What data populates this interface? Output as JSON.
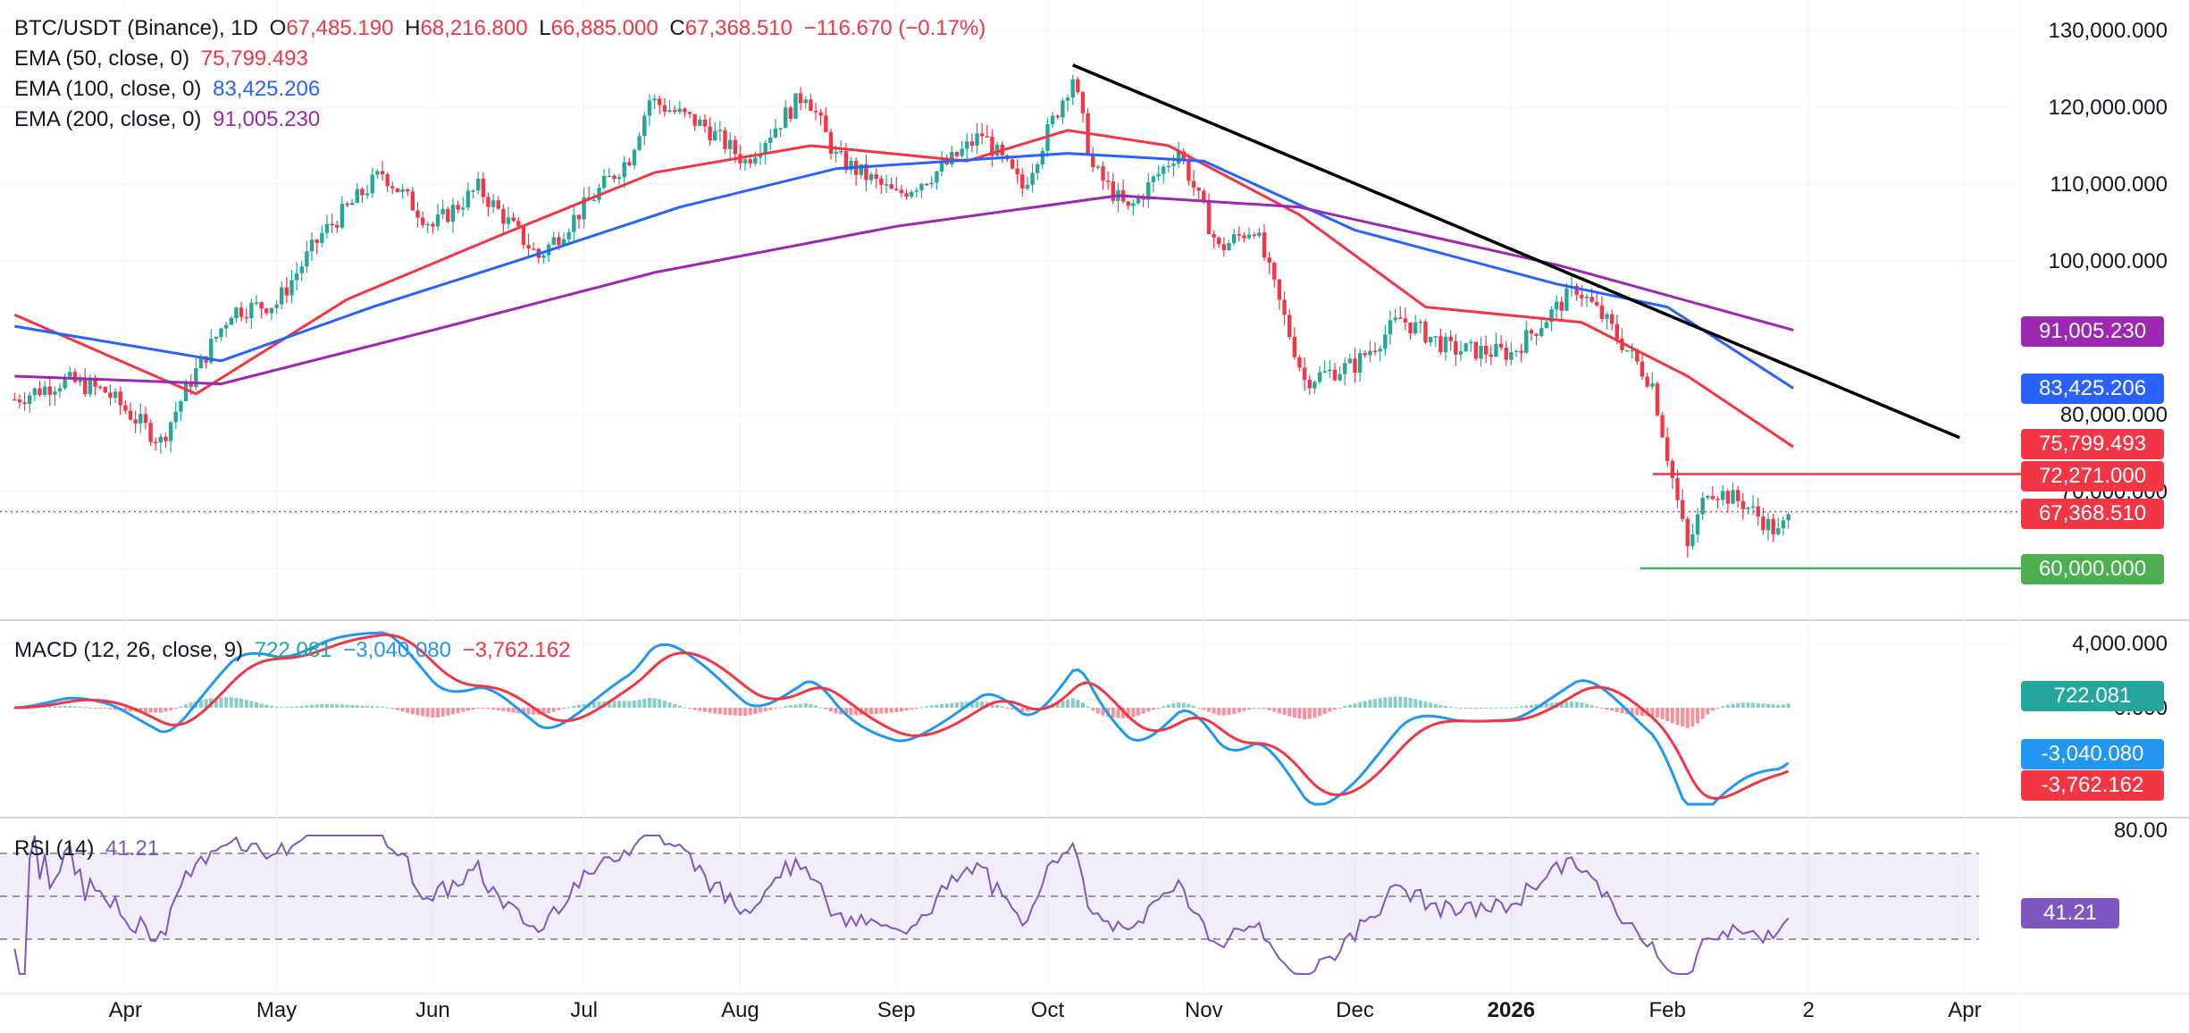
{
  "header": {
    "symbol": "BTC/USDT (Binance), 1D",
    "o_label": "O",
    "o_value": "67,485.190",
    "h_label": "H",
    "h_value": "68,216.800",
    "l_label": "L",
    "l_value": "66,885.000",
    "c_label": "C",
    "c_value": "67,368.510",
    "change": "−116.670 (−0.17%)"
  },
  "indicators": {
    "ema50": {
      "label": "EMA (50, close, 0)",
      "value": "75,799.493",
      "color": "#f23645"
    },
    "ema100": {
      "label": "EMA (100, close, 0)",
      "value": "83,425.206",
      "color": "#2962ff"
    },
    "ema200": {
      "label": "EMA (200, close, 0)",
      "value": "91,005.230",
      "color": "#9c27b0"
    },
    "macd": {
      "label": "MACD (12, 26, close, 9)",
      "hist": "722.081",
      "macd": "−3,040.080",
      "signal": "−3,762.162"
    },
    "rsi": {
      "label": "RSI (14)",
      "value": "41.21"
    }
  },
  "price_tags": {
    "ema200": "91,005.230",
    "ema100": "83,425.206",
    "ema50": "75,799.493",
    "resistance": "72,271.000",
    "last": "67,368.510",
    "support": "60,000.000",
    "macd_hist": "722.081",
    "macd_line": "-3,040.080",
    "macd_signal": "-3,762.162",
    "rsi": "41.21"
  },
  "colors": {
    "up": "#26a69a",
    "down": "#f23645",
    "ema50": "#f23645",
    "ema100": "#2962ff",
    "ema200": "#9c27b0",
    "macd": "#2196f3",
    "signal": "#f23645",
    "rsi": "#7e57c2",
    "trendline": "#000000",
    "support": "#4caf50",
    "resistance": "#f23645"
  },
  "chart_data": {
    "type": "candlestick",
    "title": "BTC/USDT (Binance), 1D",
    "price_axis_ticks": [
      "130,000.000",
      "120,000.000",
      "110,000.000",
      "100,000.000",
      "80,000.000",
      "70,000.000"
    ],
    "ylim": [
      55000,
      134000
    ],
    "x_ticks": [
      "Apr",
      "May",
      "Jun",
      "Jul",
      "Aug",
      "Sep",
      "Oct",
      "Nov",
      "Dec",
      "2026",
      "Feb",
      "2",
      "Apr"
    ],
    "price_path": [
      [
        "2025-03-10",
        82000
      ],
      [
        "2025-03-20",
        84500
      ],
      [
        "2025-03-28",
        83000
      ],
      [
        "2025-04-08",
        76500
      ],
      [
        "2025-04-14",
        84500
      ],
      [
        "2025-04-22",
        93500
      ],
      [
        "2025-05-01",
        94500
      ],
      [
        "2025-05-10",
        103500
      ],
      [
        "2025-05-22",
        111500
      ],
      [
        "2025-06-01",
        104500
      ],
      [
        "2025-06-10",
        109500
      ],
      [
        "2025-06-22",
        100500
      ],
      [
        "2025-07-01",
        107000
      ],
      [
        "2025-07-10",
        113500
      ],
      [
        "2025-07-14",
        121000
      ],
      [
        "2025-07-25",
        117500
      ],
      [
        "2025-08-02",
        113000
      ],
      [
        "2025-08-14",
        122000
      ],
      [
        "2025-08-20",
        113500
      ],
      [
        "2025-09-01",
        108500
      ],
      [
        "2025-09-10",
        112000
      ],
      [
        "2025-09-18",
        116500
      ],
      [
        "2025-09-26",
        109500
      ],
      [
        "2025-10-06",
        124000
      ],
      [
        "2025-10-10",
        112000
      ],
      [
        "2025-10-17",
        106500
      ],
      [
        "2025-10-27",
        114500
      ],
      [
        "2025-11-04",
        101500
      ],
      [
        "2025-11-11",
        104500
      ],
      [
        "2025-11-21",
        84500
      ],
      [
        "2025-12-01",
        86500
      ],
      [
        "2025-12-10",
        92500
      ],
      [
        "2025-12-20",
        88500
      ],
      [
        "2026-01-01",
        88000
      ],
      [
        "2026-01-14",
        96500
      ],
      [
        "2026-01-20",
        92000
      ],
      [
        "2026-01-29",
        84000
      ],
      [
        "2026-02-05",
        62500
      ],
      [
        "2026-02-09",
        70500
      ],
      [
        "2026-02-16",
        68500
      ],
      [
        "2026-02-23",
        64500
      ],
      [
        "2026-02-26",
        67368.51
      ]
    ],
    "series": [
      {
        "name": "EMA (50, close, 0)",
        "last": 75799.493,
        "points": [
          [
            "2025-03-10",
            93000
          ],
          [
            "2025-04-15",
            82700
          ],
          [
            "2025-05-15",
            95000
          ],
          [
            "2025-06-15",
            103500
          ],
          [
            "2025-07-15",
            111500
          ],
          [
            "2025-08-15",
            115000
          ],
          [
            "2025-09-15",
            113000
          ],
          [
            "2025-10-05",
            117000
          ],
          [
            "2025-10-25",
            115000
          ],
          [
            "2025-11-20",
            106000
          ],
          [
            "2025-12-15",
            94000
          ],
          [
            "2026-01-15",
            92000
          ],
          [
            "2026-02-05",
            85000
          ],
          [
            "2026-02-26",
            75799.493
          ]
        ]
      },
      {
        "name": "EMA (100, close, 0)",
        "last": 83425.206,
        "points": [
          [
            "2025-03-10",
            91500
          ],
          [
            "2025-04-20",
            87000
          ],
          [
            "2025-05-20",
            94000
          ],
          [
            "2025-06-20",
            100500
          ],
          [
            "2025-07-20",
            107000
          ],
          [
            "2025-08-20",
            112000
          ],
          [
            "2025-10-05",
            114000
          ],
          [
            "2025-11-01",
            113000
          ],
          [
            "2025-12-01",
            104000
          ],
          [
            "2026-01-10",
            97000
          ],
          [
            "2026-02-01",
            94000
          ],
          [
            "2026-02-26",
            83425.206
          ]
        ]
      },
      {
        "name": "EMA (200, close, 0)",
        "last": 91005.23,
        "points": [
          [
            "2025-03-10",
            85000
          ],
          [
            "2025-04-20",
            84000
          ],
          [
            "2025-06-01",
            91000
          ],
          [
            "2025-07-15",
            98500
          ],
          [
            "2025-09-01",
            104500
          ],
          [
            "2025-10-15",
            108500
          ],
          [
            "2025-11-20",
            107000
          ],
          [
            "2026-01-10",
            99500
          ],
          [
            "2026-02-26",
            91005.23
          ]
        ]
      }
    ],
    "lines": {
      "trendline": [
        [
          "2025-10-06",
          125500
        ],
        [
          "2026-03-31",
          77000
        ]
      ],
      "resistance": 72271.0,
      "support": 60000.0
    },
    "macd": {
      "ticks": [
        "4,000.000",
        "0.000"
      ],
      "hist": 722.081,
      "macd": -3040.08,
      "signal": -3762.162
    },
    "rsi": {
      "ticks": [
        "80.00"
      ],
      "bands": [
        70,
        50,
        30
      ],
      "value": 41.21
    }
  }
}
